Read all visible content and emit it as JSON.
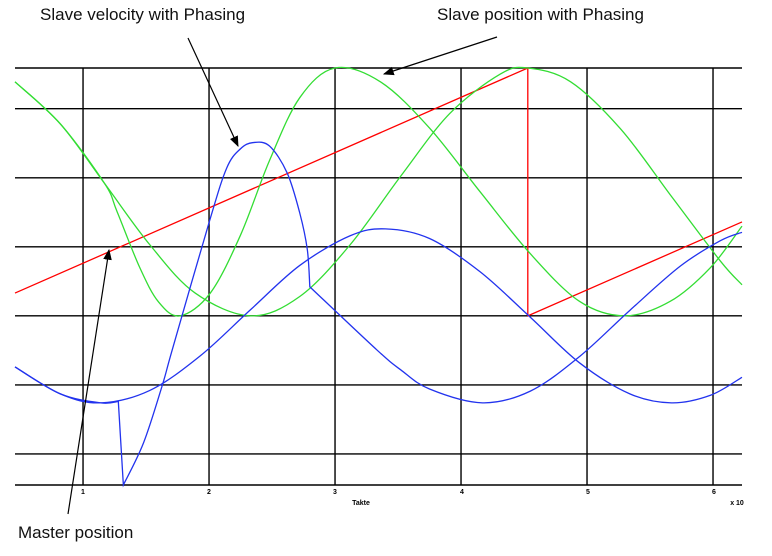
{
  "chart_data": {
    "type": "line",
    "title": "",
    "xlabel": "Takte",
    "x_multiplier_label": "x 10",
    "ylabel": "",
    "xlim": [
      0.46,
      6.23
    ],
    "ylim": [
      -2.45,
      3.59
    ],
    "x_ticks": [
      "1",
      "2",
      "3",
      "4",
      "5",
      "6"
    ],
    "grid": true,
    "series": [
      {
        "key": "master",
        "color": "#ff0000",
        "x": [
          0.46,
          4.53,
          4.53,
          6.23
        ],
        "y": [
          0.33,
          3.59,
          0,
          1.36
        ],
        "smooth": false
      },
      {
        "key": "slave_position",
        "color": "#33dd33",
        "x": [
          0.46,
          0.82,
          1.17,
          1.53,
          1.89,
          2.33,
          2.72,
          3.12,
          3.52,
          3.91,
          4.31,
          4.53,
          4.87,
          5.27,
          5.67,
          6.06,
          6.23
        ],
        "y": [
          3.39,
          2.78,
          1.92,
          1.03,
          0.33,
          0,
          0.28,
          1.03,
          2.02,
          2.93,
          3.5,
          3.59,
          3.39,
          2.7,
          1.73,
          0.79,
          0.45
        ],
        "smooth": true
      },
      {
        "key": "slave_position_phasing",
        "color": "#33dd33",
        "x": [
          0.46,
          0.82,
          1.17,
          1.27,
          1.45,
          1.6,
          1.77,
          2.01,
          2.25,
          2.48,
          2.72,
          3.0,
          3.36,
          3.75,
          4.15,
          4.55,
          4.94,
          5.3,
          5.66,
          5.98,
          6.23
        ],
        "y": [
          3.39,
          2.78,
          1.92,
          1.51,
          0.7,
          0.2,
          0,
          0.33,
          1.17,
          2.25,
          3.16,
          3.59,
          3.39,
          2.72,
          1.8,
          0.9,
          0.21,
          0,
          0.21,
          0.7,
          1.3
        ],
        "smooth": true
      },
      {
        "key": "slave_velocity",
        "color": "#2233ee",
        "x": [
          0.46,
          0.82,
          1.14,
          1.53,
          1.93,
          2.33,
          2.72,
          3.12,
          3.4,
          3.75,
          4.15,
          4.55,
          4.94,
          5.34,
          5.67,
          5.98,
          6.23
        ],
        "y": [
          -0.74,
          -1.13,
          -1.26,
          -1.08,
          -0.58,
          0.09,
          0.73,
          1.16,
          1.26,
          1.12,
          0.64,
          -0.02,
          -0.68,
          -1.13,
          -1.26,
          -1.15,
          -0.89
        ],
        "smooth": true
      },
      {
        "key": "slave_velocity_phasing",
        "color": "#2233ee",
        "x": [
          0.46,
          0.82,
          1.14,
          1.28,
          1.32,
          1.48,
          1.63,
          1.71,
          2.0,
          2.14,
          2.25,
          2.35,
          2.48,
          2.62,
          2.72,
          2.78,
          2.8,
          3.33,
          3.52,
          3.75,
          4.17,
          4.55,
          4.94,
          5.34,
          5.74,
          6.06,
          6.23
        ],
        "y": [
          -0.74,
          -1.13,
          -1.26,
          -1.24,
          -2.45,
          -1.84,
          -1.0,
          -0.48,
          1.35,
          2.14,
          2.42,
          2.51,
          2.46,
          2.07,
          1.49,
          0.96,
          0.42,
          -0.49,
          -0.78,
          -1.06,
          -1.26,
          -1.09,
          -0.59,
          0.08,
          0.72,
          1.09,
          1.21
        ],
        "smooth": "partial"
      }
    ],
    "annotations": {
      "slave_velocity": "Slave velocity with Phasing",
      "slave_position": "Slave position with Phasing",
      "master": "Master position"
    }
  }
}
